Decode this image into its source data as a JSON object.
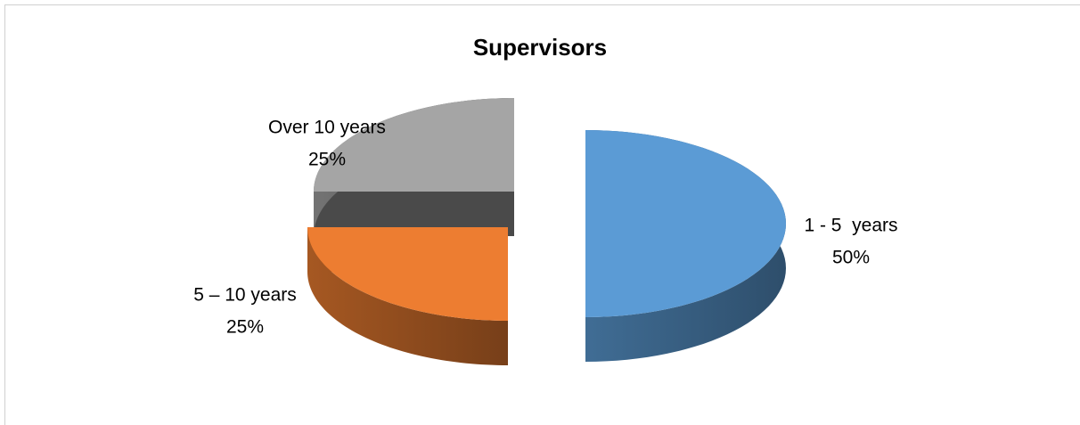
{
  "chart_data": {
    "type": "pie",
    "title": "Supervisors",
    "categories": [
      "1 - 5  years",
      "5 – 10 years",
      "Over 10 years"
    ],
    "values": [
      50,
      25,
      25
    ],
    "value_labels": [
      "50%",
      "25%",
      "25%"
    ],
    "colors": [
      "#5b9bd5",
      "#ed7d31",
      "#a5a5a5"
    ],
    "start_angle": 0,
    "direction": "clockwise",
    "exploded": true,
    "three_d": true
  }
}
